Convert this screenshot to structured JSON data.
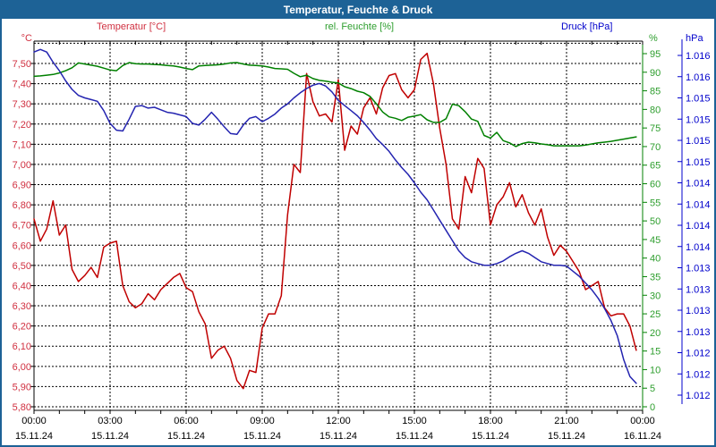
{
  "window": {
    "title": "Temperatur, Feuchte & Druck"
  },
  "legend": {
    "temperature": "Temperatur [°C]",
    "humidity": "rel. Feuchte [%]",
    "pressure": "Druck [hPa]"
  },
  "axes": {
    "temp_unit": "°C",
    "hum_unit": "%",
    "press_unit": "hPa",
    "temp_ticks": [
      "7,50",
      "7,40",
      "7,30",
      "7,20",
      "7,10",
      "7,00",
      "6,90",
      "6,80",
      "6,70",
      "6,60",
      "6,50",
      "6,40",
      "6,30",
      "6,20",
      "6,10",
      "6,00",
      "5,90",
      "5,80"
    ],
    "hum_ticks": [
      "95",
      "90",
      "85",
      "80",
      "75",
      "70",
      "65",
      "60",
      "55",
      "50",
      "45",
      "40",
      "35",
      "30",
      "25",
      "20",
      "15",
      "10",
      "5",
      "0"
    ],
    "press_ticks": [
      "1.016",
      "1.016",
      "1.015",
      "1.015",
      "1.015",
      "1.015",
      "1.014",
      "1.014",
      "1.014",
      "1.014",
      "1.013",
      "1.013",
      "1.013",
      "1.013",
      "1.012",
      "1.012",
      "1.012"
    ],
    "x_ticks": [
      {
        "time": "00:00",
        "date": "15.11.24"
      },
      {
        "time": "03:00",
        "date": "15.11.24"
      },
      {
        "time": "06:00",
        "date": "15.11.24"
      },
      {
        "time": "09:00",
        "date": "15.11.24"
      },
      {
        "time": "12:00",
        "date": "15.11.24"
      },
      {
        "time": "15:00",
        "date": "15.11.24"
      },
      {
        "time": "18:00",
        "date": "15.11.24"
      },
      {
        "time": "21:00",
        "date": "15.11.24"
      },
      {
        "time": "00:00",
        "date": "16.11.24"
      }
    ]
  },
  "colors": {
    "title_bar": "#1d6296",
    "frame": "#1d6296",
    "temperature": "#c00000",
    "temperature_label": "#d03040",
    "humidity": "#008000",
    "humidity_label": "#2e9e2e",
    "pressure": "#2424b0",
    "pressure_label": "#0000cc",
    "grid": "#000000",
    "x_label": "#000000"
  },
  "chart_data": {
    "type": "line",
    "title": "Temperatur, Feuchte & Druck",
    "x_start": "15.11.24 00:00",
    "x_end": "16.11.24 00:00",
    "step_minutes": 15,
    "grid": "dashed, horizontal every 0.10 °C, vertical every 3 h",
    "legend_position": "top",
    "series": [
      {
        "name": "Temperatur [°C]",
        "axis": "left",
        "unit": "°C",
        "axis_range": [
          5.8,
          7.6
        ],
        "values": [
          6.73,
          6.62,
          6.68,
          6.82,
          6.65,
          6.7,
          6.48,
          6.42,
          6.45,
          6.49,
          6.44,
          6.59,
          6.61,
          6.62,
          6.4,
          6.32,
          6.29,
          6.31,
          6.36,
          6.33,
          6.38,
          6.41,
          6.44,
          6.46,
          6.39,
          6.37,
          6.27,
          6.21,
          6.04,
          6.08,
          6.1,
          6.04,
          5.93,
          5.89,
          5.98,
          5.97,
          6.19,
          6.26,
          6.26,
          6.35,
          6.75,
          7.0,
          6.96,
          7.45,
          7.31,
          7.24,
          7.25,
          7.21,
          7.42,
          7.07,
          7.19,
          7.15,
          7.28,
          7.33,
          7.25,
          7.38,
          7.44,
          7.45,
          7.37,
          7.33,
          7.37,
          7.52,
          7.55,
          7.4,
          7.18,
          7.0,
          6.73,
          6.68,
          6.94,
          6.86,
          7.03,
          6.98,
          6.7,
          6.8,
          6.84,
          6.91,
          6.79,
          6.85,
          6.76,
          6.7,
          6.78,
          6.64,
          6.55,
          6.6,
          6.57,
          6.52,
          6.47,
          6.38,
          6.4,
          6.42,
          6.29,
          6.25,
          6.26,
          6.26,
          6.2,
          6.08
        ]
      },
      {
        "name": "rel. Feuchte [%]",
        "axis": "right",
        "unit": "%",
        "axis_range": [
          0,
          97.8
        ],
        "values": [
          88.9,
          89.0,
          89.2,
          89.4,
          89.8,
          90.4,
          91.2,
          92.5,
          92.2,
          91.9,
          91.6,
          91.1,
          90.6,
          90.4,
          91.8,
          92.6,
          92.3,
          92.2,
          92.2,
          92.1,
          92.0,
          91.8,
          91.7,
          91.4,
          91.0,
          90.7,
          91.7,
          91.8,
          91.9,
          92.0,
          92.2,
          92.5,
          92.6,
          92.2,
          91.9,
          91.8,
          91.7,
          91.4,
          91.0,
          90.9,
          90.8,
          89.7,
          88.8,
          89.2,
          88.3,
          87.8,
          87.6,
          87.3,
          87.1,
          86.1,
          85.6,
          84.9,
          84.5,
          83.5,
          81.5,
          79.3,
          78.0,
          77.6,
          77.0,
          77.9,
          78.2,
          78.6,
          77.2,
          76.5,
          76.5,
          77.5,
          81.4,
          81.0,
          79.4,
          77.4,
          76.8,
          73.0,
          72.3,
          73.8,
          71.6,
          71.0,
          70.0,
          70.8,
          71.2,
          71.0,
          70.7,
          70.5,
          70.2,
          70.2,
          70.2,
          70.2,
          70.2,
          70.4,
          70.7,
          71.0,
          71.2,
          71.4,
          71.7,
          72.0,
          72.3,
          72.6
        ]
      },
      {
        "name": "Druck [hPa]",
        "axis": "far-right",
        "unit": "hPa",
        "axis_range": [
          1011.85,
          1016.15
        ],
        "values": [
          1016.04,
          1016.07,
          1016.04,
          1015.92,
          1015.82,
          1015.7,
          1015.6,
          1015.53,
          1015.5,
          1015.48,
          1015.46,
          1015.35,
          1015.2,
          1015.12,
          1015.11,
          1015.25,
          1015.4,
          1015.41,
          1015.38,
          1015.39,
          1015.36,
          1015.33,
          1015.32,
          1015.3,
          1015.28,
          1015.2,
          1015.18,
          1015.25,
          1015.33,
          1015.25,
          1015.16,
          1015.08,
          1015.07,
          1015.18,
          1015.26,
          1015.28,
          1015.22,
          1015.26,
          1015.31,
          1015.38,
          1015.43,
          1015.5,
          1015.56,
          1015.61,
          1015.65,
          1015.67,
          1015.64,
          1015.57,
          1015.47,
          1015.41,
          1015.35,
          1015.29,
          1015.21,
          1015.12,
          1015.02,
          1014.95,
          1014.87,
          1014.77,
          1014.68,
          1014.6,
          1014.5,
          1014.39,
          1014.3,
          1014.18,
          1014.06,
          1013.94,
          1013.82,
          1013.7,
          1013.62,
          1013.57,
          1013.55,
          1013.53,
          1013.53,
          1013.55,
          1013.58,
          1013.63,
          1013.67,
          1013.7,
          1013.67,
          1013.62,
          1013.57,
          1013.55,
          1013.53,
          1013.53,
          1013.52,
          1013.46,
          1013.4,
          1013.32,
          1013.24,
          1013.14,
          1013.02,
          1012.88,
          1012.7,
          1012.42,
          1012.22,
          1012.14
        ]
      }
    ]
  }
}
